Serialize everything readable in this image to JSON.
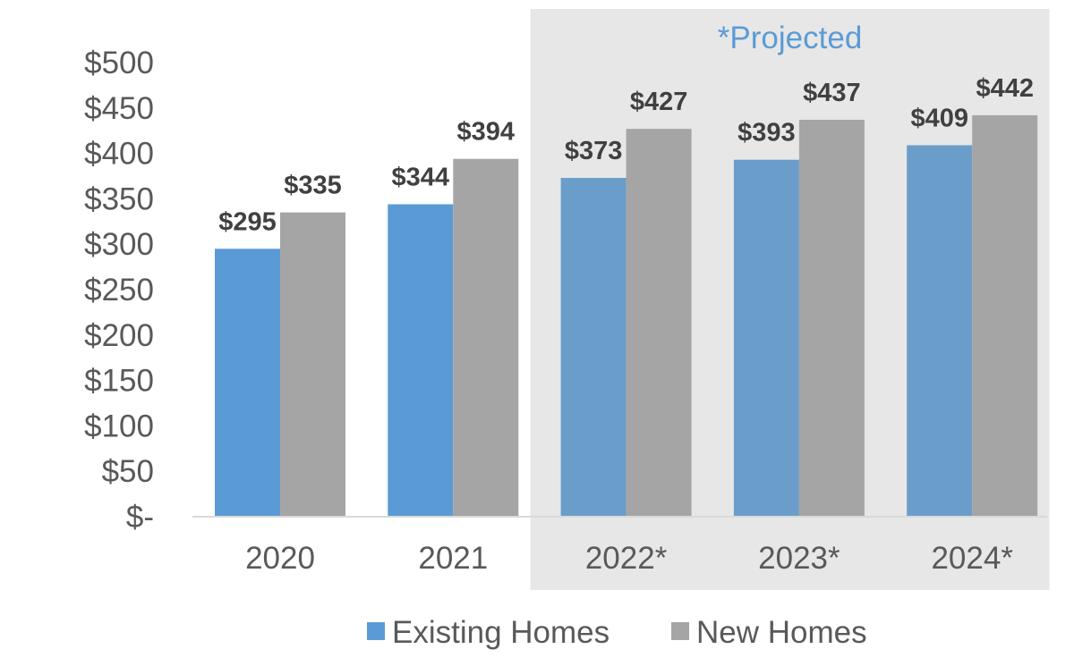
{
  "chart_data": {
    "type": "bar",
    "categories": [
      "2020",
      "2021",
      "2022*",
      "2023*",
      "2024*"
    ],
    "series": [
      {
        "name": "Existing Homes",
        "values": [
          295,
          344,
          373,
          393,
          409
        ],
        "labels": [
          "$295",
          "$344",
          "$373",
          "$393",
          "$409"
        ],
        "color": "#5B9BD5",
        "color_projected": "#6A9DCA"
      },
      {
        "name": "New Homes",
        "values": [
          335,
          394,
          427,
          437,
          442
        ],
        "labels": [
          "$335",
          "$394",
          "$427",
          "$437",
          "$442"
        ],
        "color": "#A5A5A5",
        "color_projected": "#A5A5A5"
      }
    ],
    "ylim": [
      0,
      500
    ],
    "yticks": [
      0,
      50,
      100,
      150,
      200,
      250,
      300,
      350,
      400,
      450,
      500
    ],
    "ytick_labels": [
      "$-",
      "$50",
      "$100",
      "$150",
      "$200",
      "$250",
      "$300",
      "$350",
      "$400",
      "$450",
      "$500"
    ],
    "grid": false,
    "legend_position": "bottom",
    "projected": {
      "label": "*Projected",
      "categories": [
        "2022*",
        "2023*",
        "2024*"
      ],
      "label_color": "#5B9BD5",
      "shade_color": "#E7E7E7"
    },
    "axis_color": "#D9D9D9"
  }
}
